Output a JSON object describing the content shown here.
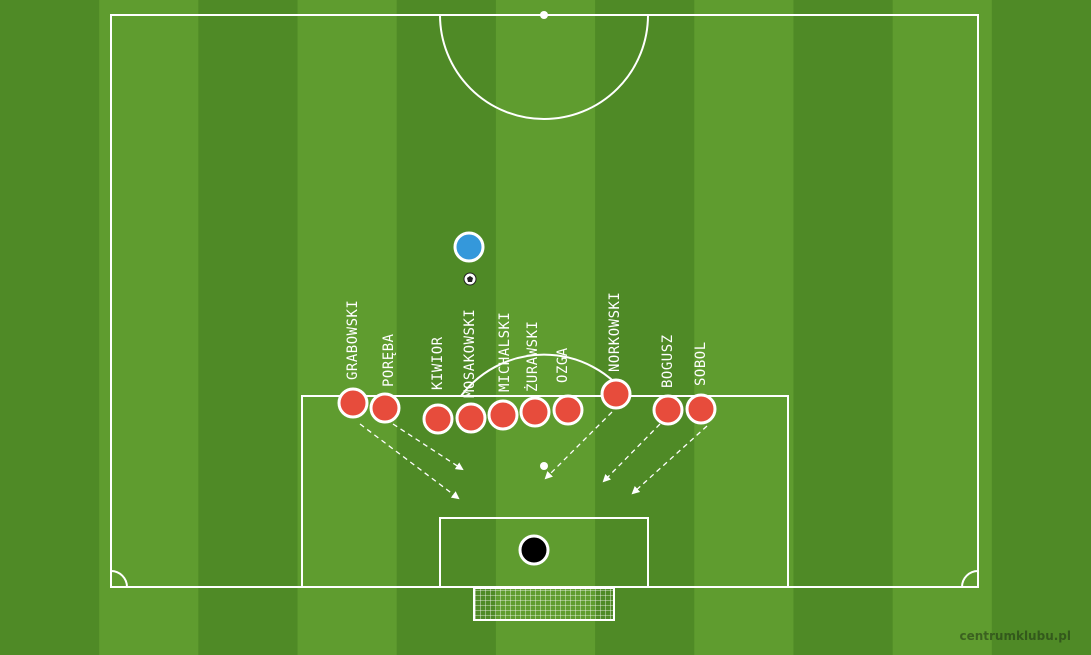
{
  "colors": {
    "grass_light": "#5f9c2f",
    "grass_dark": "#4f8a26",
    "lines": "#ffffff",
    "defender": "#e74c3c",
    "attacker": "#3498db",
    "keeper": "#000000"
  },
  "players": [
    {
      "id": "grabowski",
      "label": "GRABOWSKI",
      "team": "defender"
    },
    {
      "id": "poreba",
      "label": "PORĘBA",
      "team": "defender"
    },
    {
      "id": "kiwior",
      "label": "KIWIOR",
      "team": "defender"
    },
    {
      "id": "mosakowski",
      "label": "MOSAKOWSKI",
      "team": "defender"
    },
    {
      "id": "michalski",
      "label": "MICHALSKI",
      "team": "defender"
    },
    {
      "id": "zurawski",
      "label": "ŻURAWSKI",
      "team": "defender"
    },
    {
      "id": "ozga",
      "label": "OZGA",
      "team": "defender"
    },
    {
      "id": "norkowski",
      "label": "NORKOWSKI",
      "team": "defender"
    },
    {
      "id": "bogusz",
      "label": "BOGUSZ",
      "team": "defender"
    },
    {
      "id": "sobol",
      "label": "SOBOL",
      "team": "defender"
    }
  ],
  "attacker": {
    "team": "attacker"
  },
  "goalkeeper": {
    "team": "keeper"
  },
  "watermark": "centrumklubu.pl"
}
